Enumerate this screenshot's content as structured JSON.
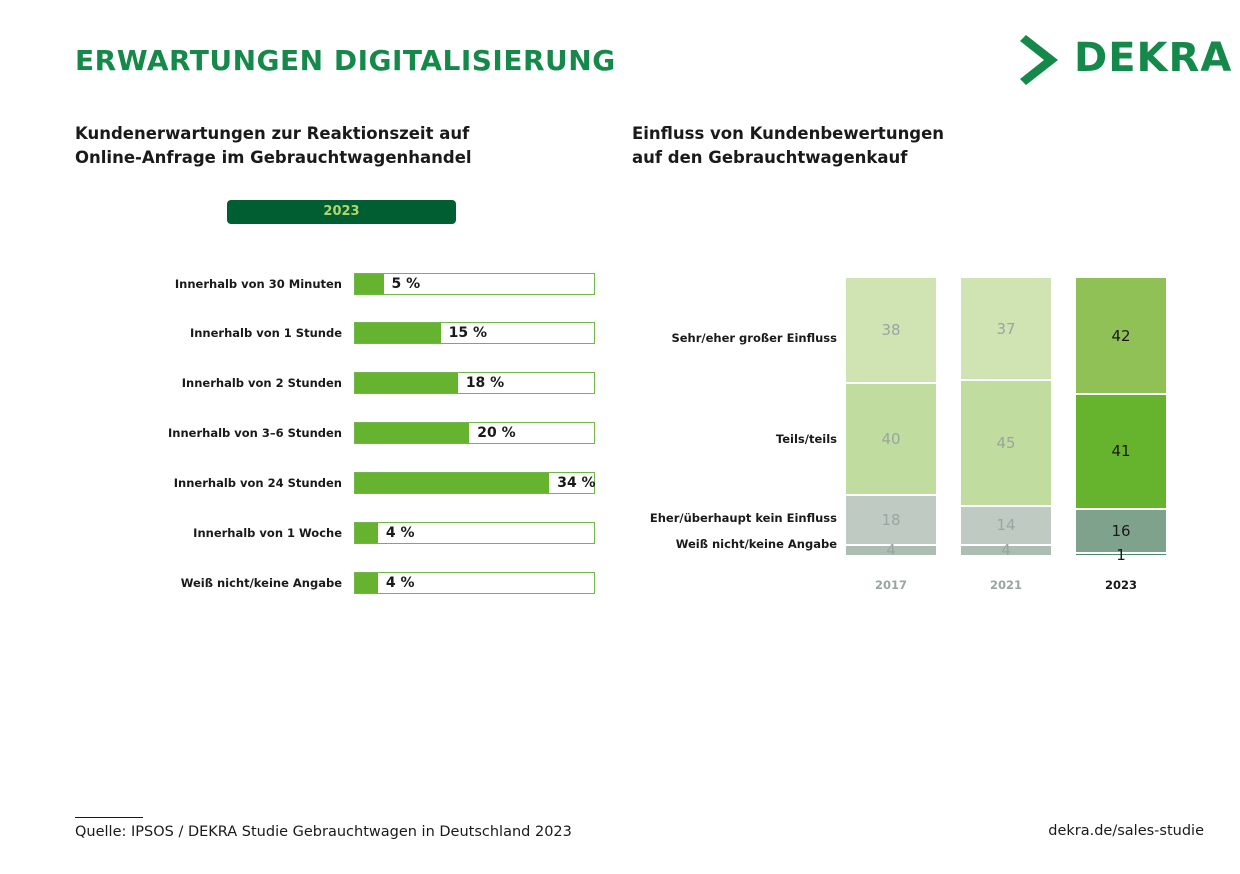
{
  "header": {
    "title": "ERWARTUNGEN DIGITALISIERUNG",
    "logo_text": "DEKRA"
  },
  "colors": {
    "brand_green": "#15894a",
    "dark_green": "#005e33",
    "bar_green": "#65b32e"
  },
  "footer": {
    "source": "Quelle: IPSOS / DEKRA Studie Gebrauchtwagen in Deutschland 2023",
    "site": "dekra.de/sales-studie"
  },
  "chart_data": [
    {
      "type": "bar",
      "orientation": "horizontal",
      "title": "Kundenerwartungen zur Reaktionszeit auf Online-Anfrage im Gebrauchtwagenhandel",
      "title_lines": [
        "Kundenerwartungen zur Reaktionszeit auf",
        "Online-Anfrage im Gebrauchtwagenhandel"
      ],
      "year": "2023",
      "categories": [
        "Innerhalb von 30 Minuten",
        "Innerhalb von 1 Stunde",
        "Innerhalb von 2 Stunden",
        "Innerhalb von 3–6 Stunden",
        "Innerhalb von 24 Stunden",
        "Innerhalb von 1 Woche",
        "Weiß nicht/keine Angabe"
      ],
      "values": [
        5,
        15,
        18,
        20,
        34,
        4,
        4
      ],
      "value_labels": [
        "5 %",
        "15 %",
        "18 %",
        "20 %",
        "34 %",
        "4 %",
        "4 %"
      ],
      "xlim": [
        0,
        100
      ],
      "grid": false
    },
    {
      "type": "bar",
      "stacked": true,
      "title": "Einfluss von Kundenbewertungen auf den Gebrauchtwagenkauf",
      "title_lines": [
        "Einfluss von Kundenbewertungen",
        "auf den Gebrauchtwagenkauf"
      ],
      "categories": [
        "2017",
        "2021",
        "2023"
      ],
      "series": [
        {
          "name": "Sehr/eher großer Einfluss",
          "values": [
            38,
            37,
            42
          ]
        },
        {
          "name": "Teils/teils",
          "values": [
            40,
            45,
            41
          ]
        },
        {
          "name": "Eher/überhaupt kein Einfluss",
          "values": [
            18,
            14,
            16
          ]
        },
        {
          "name": "Weiß nicht/keine Angabe",
          "values": [
            4,
            4,
            1
          ]
        }
      ],
      "series_colors": [
        [
          "#cfe3b3",
          "#cfe3b3",
          "#8fc157"
        ],
        [
          "#c0dc9e",
          "#c0dc9e",
          "#66b32e"
        ],
        [
          "#bfcbc2",
          "#bfcbc2",
          "#7fa28c"
        ],
        [
          "#acbeb4",
          "#acbeb4",
          "#4e8870"
        ]
      ],
      "ylim": [
        0,
        100
      ],
      "grid": false
    }
  ]
}
